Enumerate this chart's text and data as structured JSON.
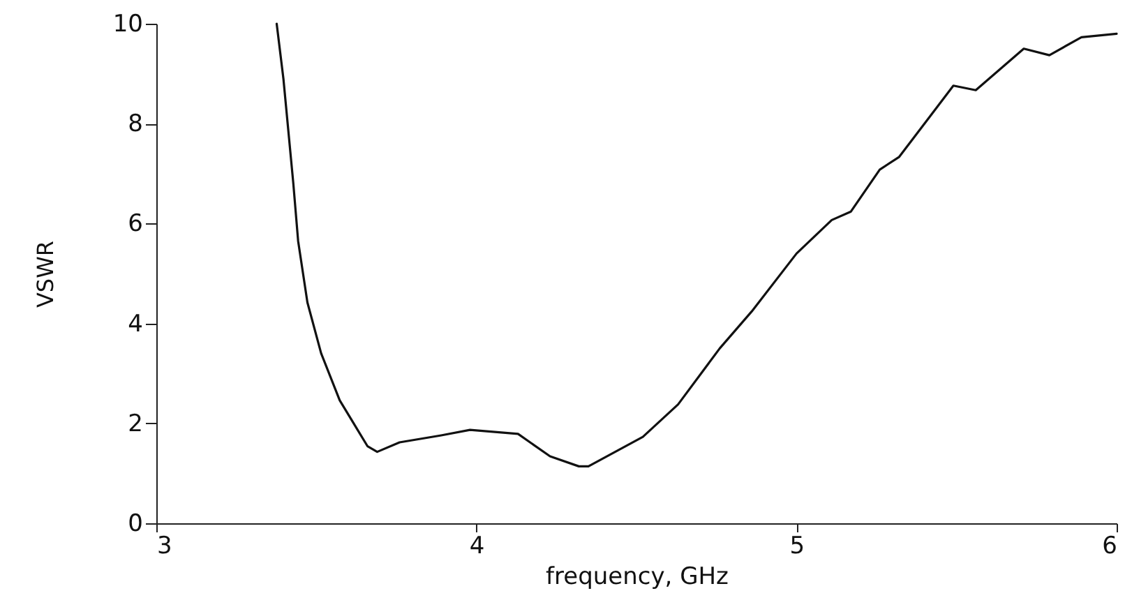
{
  "chart_data": {
    "type": "line",
    "xlabel": "frequency, GHz",
    "ylabel": "VSWR",
    "xlim": [
      3,
      6
    ],
    "xticks": [
      3,
      4,
      5,
      6
    ],
    "ylim": [
      0,
      10
    ],
    "yticks": [
      0,
      2,
      4,
      6,
      8,
      10
    ],
    "grid": false,
    "x": [
      3.376,
      3.397,
      3.428,
      3.443,
      3.472,
      3.515,
      3.573,
      3.66,
      3.69,
      3.76,
      3.89,
      3.98,
      4.13,
      4.23,
      4.32,
      4.35,
      4.52,
      4.63,
      4.76,
      4.86,
      5.0,
      5.11,
      5.17,
      5.26,
      5.32,
      5.42,
      5.49,
      5.56,
      5.71,
      5.79,
      5.89,
      6.0
    ],
    "series": [
      {
        "color": "#111111",
        "values": [
          10,
          8.9,
          6.8,
          5.65,
          4.42,
          3.4,
          2.46,
          1.54,
          1.43,
          1.62,
          1.76,
          1.87,
          1.79,
          1.34,
          1.14,
          1.14,
          1.73,
          2.38,
          3.5,
          4.24,
          5.4,
          6.07,
          6.24,
          7.08,
          7.33,
          8.17,
          8.76,
          8.67,
          9.5,
          9.37,
          9.73,
          9.8
        ]
      }
    ]
  }
}
